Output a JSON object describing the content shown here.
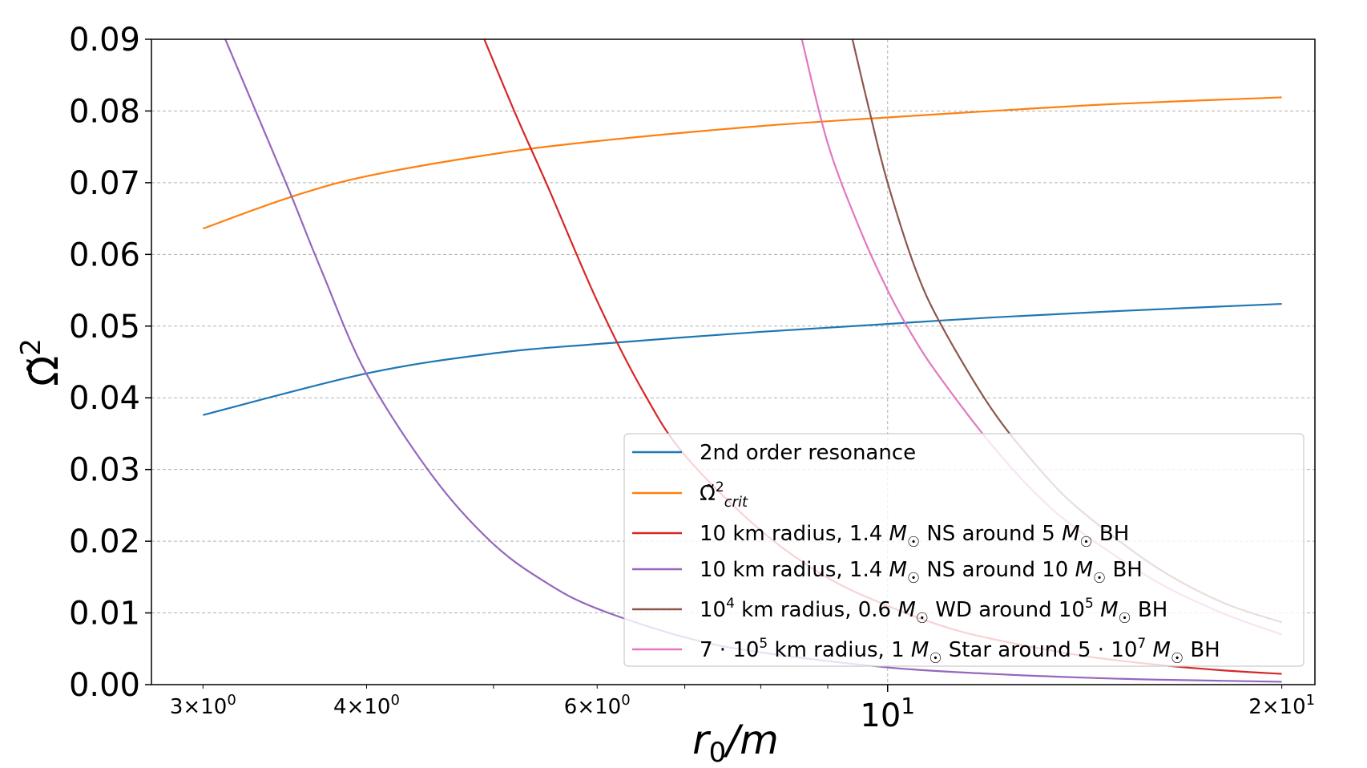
{
  "chart_data": {
    "type": "line",
    "xscale": "log",
    "xlabel": "r_0/m",
    "ylabel": "Ω̃²",
    "xlim": [
      2.74,
      21.2
    ],
    "ylim": [
      0.0,
      0.09
    ],
    "grid": true,
    "legend_position": "lower-right",
    "y_ticks": [
      "0.00",
      "0.01",
      "0.02",
      "0.03",
      "0.04",
      "0.05",
      "0.06",
      "0.07",
      "0.08",
      "0.09"
    ],
    "x_ticks": [
      {
        "value": 3,
        "base": "3",
        "exp": "0"
      },
      {
        "value": 4,
        "base": "4",
        "exp": "0"
      },
      {
        "value": 6,
        "base": "6",
        "exp": "0"
      },
      {
        "value": 10,
        "base": "",
        "exp": "1"
      },
      {
        "value": 20,
        "base": "2",
        "exp": "1"
      }
    ],
    "series": [
      {
        "name": "2nd order resonance",
        "color": "#1f77b4",
        "x": [
          3.0,
          4.0,
          5.0,
          6.0,
          8.0,
          10.0,
          12.0,
          15.0,
          20.0
        ],
        "y": [
          0.0376,
          0.0434,
          0.0462,
          0.0475,
          0.0492,
          0.0503,
          0.0512,
          0.0521,
          0.0531
        ]
      },
      {
        "name": "Ω̃²crit",
        "color": "#ff7f0e",
        "x": [
          3.0,
          3.5,
          4.0,
          5.0,
          6.0,
          8.0,
          10.0,
          12.0,
          15.0,
          20.0
        ],
        "y": [
          0.0636,
          0.068,
          0.0709,
          0.074,
          0.0758,
          0.0779,
          0.0791,
          0.08,
          0.081,
          0.0819
        ]
      },
      {
        "name": "10 km radius, 1.4 M☉ NS around 5 M☉ BH",
        "color": "#d62728",
        "x": [
          4.92,
          5.2,
          5.5,
          6.0,
          6.5,
          7.0,
          8.0,
          9.0,
          10.0,
          11.0,
          12.0,
          14.0,
          16.0,
          18.0,
          20.0
        ],
        "y": [
          0.09,
          0.0795,
          0.0695,
          0.0535,
          0.041,
          0.032,
          0.0215,
          0.0149,
          0.011,
          0.0082,
          0.0064,
          0.0041,
          0.0028,
          0.002,
          0.0015
        ]
      },
      {
        "name": "10 km radius, 1.4 M☉ NS around 10 M☉ BH",
        "color": "#9467bd",
        "x": [
          3.12,
          3.3,
          3.5,
          3.7,
          4.0,
          4.5,
          5.0,
          5.5,
          6.0,
          7.0,
          8.0,
          10.0,
          12.0,
          14.0,
          16.0,
          20.0
        ],
        "y": [
          0.09,
          0.0795,
          0.0684,
          0.0575,
          0.0433,
          0.0289,
          0.0196,
          0.0141,
          0.0106,
          0.0066,
          0.0045,
          0.0024,
          0.0015,
          0.001,
          0.0007,
          0.0004
        ]
      },
      {
        "name": "10⁴ km radius, 0.6 M☉ WD around 10⁵ M☉ BH",
        "color": "#8c564b",
        "x": [
          9.4,
          9.7,
          10.0,
          10.5,
          11.0,
          12.0,
          13.0,
          14.0,
          16.0,
          18.0,
          20.0
        ],
        "y": [
          0.09,
          0.0795,
          0.07,
          0.058,
          0.05,
          0.0385,
          0.0305,
          0.0245,
          0.0165,
          0.0115,
          0.0087
        ]
      },
      {
        "name": "7·10⁵ km radius, 1 M☉ Star around 5·10⁷ M☉ BH",
        "color": "#e377c2",
        "x": [
          8.6,
          9.0,
          9.5,
          10.0,
          10.5,
          11.0,
          12.0,
          13.0,
          14.0,
          16.0,
          18.0,
          20.0
        ],
        "y": [
          0.09,
          0.0755,
          0.064,
          0.055,
          0.048,
          0.0425,
          0.0335,
          0.0265,
          0.0215,
          0.0145,
          0.01,
          0.007
        ]
      }
    ],
    "legend": [
      {
        "parts": [
          {
            "t": "2nd order resonance"
          }
        ]
      },
      {
        "parts": [
          {
            "t": "Ω̃"
          },
          {
            "t": "2",
            "sup": true
          },
          {
            "t": "crit",
            "sub": true,
            "it": true
          }
        ]
      },
      {
        "parts": [
          {
            "t": "10 km radius, 1.4 "
          },
          {
            "t": "M",
            "it": true
          },
          {
            "t": "☉",
            "sub": true
          },
          {
            "t": " NS around 5 "
          },
          {
            "t": "M",
            "it": true
          },
          {
            "t": "☉",
            "sub": true
          },
          {
            "t": " BH"
          }
        ]
      },
      {
        "parts": [
          {
            "t": "10 km radius, 1.4 "
          },
          {
            "t": "M",
            "it": true
          },
          {
            "t": "☉",
            "sub": true
          },
          {
            "t": " NS around 10 "
          },
          {
            "t": "M",
            "it": true
          },
          {
            "t": "☉",
            "sub": true
          },
          {
            "t": " BH"
          }
        ]
      },
      {
        "parts": [
          {
            "t": "10"
          },
          {
            "t": "4",
            "sup": true
          },
          {
            "t": " km radius, 0.6 "
          },
          {
            "t": "M",
            "it": true
          },
          {
            "t": "☉",
            "sub": true
          },
          {
            "t": " WD around 10"
          },
          {
            "t": "5",
            "sup": true
          },
          {
            "t": " "
          },
          {
            "t": "M",
            "it": true
          },
          {
            "t": "☉",
            "sub": true
          },
          {
            "t": " BH"
          }
        ]
      },
      {
        "parts": [
          {
            "t": "7 · 10"
          },
          {
            "t": "5",
            "sup": true
          },
          {
            "t": " km radius, 1 "
          },
          {
            "t": "M",
            "it": true
          },
          {
            "t": "☉",
            "sub": true
          },
          {
            "t": " Star around 5 · 10"
          },
          {
            "t": "7",
            "sup": true
          },
          {
            "t": " "
          },
          {
            "t": "M",
            "it": true
          },
          {
            "t": "☉",
            "sub": true
          },
          {
            "t": " BH"
          }
        ]
      }
    ]
  }
}
